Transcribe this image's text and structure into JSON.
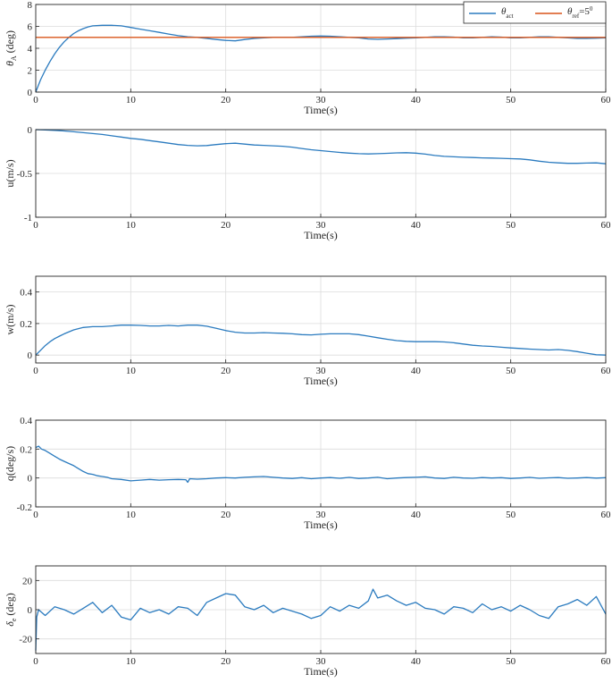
{
  "colors": {
    "series_blue": "#2b7bbf",
    "reference_red": "#d9541a",
    "grid": "#dcdcdc",
    "axes": "#262626"
  },
  "chart_data": [
    {
      "type": "line",
      "xlabel": "Time(s)",
      "ylabel": "θ_A (deg)",
      "xlim": [
        0,
        60
      ],
      "ylim": [
        0,
        8
      ],
      "xticks": [
        0,
        10,
        20,
        30,
        40,
        50,
        60
      ],
      "yticks": [
        0,
        2,
        4,
        6,
        8
      ],
      "grid": true,
      "legend": "top-right",
      "series": [
        {
          "name": "θ_act",
          "color": "#2b7bbf",
          "x": [
            0,
            0.5,
            1,
            1.5,
            2,
            2.5,
            3,
            3.5,
            4,
            4.5,
            5,
            5.5,
            6,
            7,
            8,
            9,
            10,
            11,
            12,
            13,
            14,
            15,
            16,
            17,
            18,
            19,
            20,
            21,
            22,
            23,
            24,
            25,
            26,
            27,
            28,
            29,
            30,
            31,
            32,
            33,
            34,
            35,
            36,
            37,
            38,
            39,
            40,
            41,
            42,
            43,
            44,
            45,
            46,
            47,
            48,
            49,
            50,
            51,
            52,
            53,
            54,
            55,
            56,
            57,
            58,
            59,
            60
          ],
          "y": [
            0,
            1.1,
            2.0,
            2.8,
            3.5,
            4.1,
            4.6,
            5.0,
            5.35,
            5.6,
            5.8,
            5.95,
            6.05,
            6.1,
            6.1,
            6.05,
            5.9,
            5.75,
            5.6,
            5.45,
            5.3,
            5.15,
            5.05,
            5.0,
            4.9,
            4.8,
            4.72,
            4.68,
            4.8,
            4.9,
            4.95,
            5.0,
            5.0,
            5.0,
            5.05,
            5.1,
            5.12,
            5.1,
            5.05,
            5.0,
            4.95,
            4.85,
            4.82,
            4.85,
            4.88,
            4.92,
            4.95,
            5.0,
            5.05,
            5.05,
            5.02,
            4.95,
            4.95,
            5.0,
            5.05,
            5.02,
            4.95,
            4.95,
            5.0,
            5.05,
            5.05,
            5.0,
            4.95,
            4.9,
            4.9,
            4.92,
            4.95
          ]
        },
        {
          "name": "θ_ref=5⁰",
          "color": "#d9541a",
          "x": [
            0,
            60
          ],
          "y": [
            5,
            5
          ]
        }
      ],
      "legend_entries": [
        {
          "base": "θ",
          "sub": "act",
          "sup": "",
          "tail": ""
        },
        {
          "base": "θ",
          "sub": "ref",
          "sup": "0",
          "tail": "=5"
        }
      ]
    },
    {
      "type": "line",
      "xlabel": "Time(s)",
      "ylabel": "u(m/s)",
      "xlim": [
        0,
        60
      ],
      "ylim": [
        -1,
        0
      ],
      "xticks": [
        0,
        10,
        20,
        30,
        40,
        50,
        60
      ],
      "yticks": [
        -1,
        -0.5,
        0
      ],
      "ytick_labels": [
        "-1",
        "-0.5",
        "0"
      ],
      "grid": true,
      "series": [
        {
          "color": "#2b7bbf",
          "x": [
            0,
            1,
            2,
            3,
            4,
            5,
            6,
            7,
            8,
            9,
            10,
            11,
            12,
            13,
            14,
            15,
            16,
            17,
            18,
            19,
            20,
            21,
            22,
            23,
            24,
            25,
            26,
            27,
            28,
            29,
            30,
            31,
            32,
            33,
            34,
            35,
            36,
            37,
            38,
            39,
            40,
            41,
            42,
            43,
            44,
            45,
            46,
            47,
            48,
            49,
            50,
            51,
            52,
            53,
            54,
            55,
            56,
            57,
            58,
            59,
            60
          ],
          "y": [
            0,
            -0.003,
            -0.008,
            -0.015,
            -0.025,
            -0.035,
            -0.045,
            -0.055,
            -0.07,
            -0.085,
            -0.1,
            -0.11,
            -0.125,
            -0.14,
            -0.155,
            -0.17,
            -0.18,
            -0.185,
            -0.182,
            -0.17,
            -0.16,
            -0.155,
            -0.165,
            -0.175,
            -0.18,
            -0.185,
            -0.19,
            -0.2,
            -0.215,
            -0.23,
            -0.24,
            -0.25,
            -0.26,
            -0.268,
            -0.275,
            -0.278,
            -0.275,
            -0.27,
            -0.265,
            -0.263,
            -0.268,
            -0.28,
            -0.295,
            -0.305,
            -0.31,
            -0.315,
            -0.318,
            -0.322,
            -0.325,
            -0.328,
            -0.332,
            -0.335,
            -0.345,
            -0.36,
            -0.372,
            -0.38,
            -0.385,
            -0.385,
            -0.382,
            -0.38,
            -0.39
          ]
        }
      ]
    },
    {
      "type": "line",
      "xlabel": "Time(s)",
      "ylabel": "w(m/s)",
      "xlim": [
        0,
        60
      ],
      "ylim": [
        -0.05,
        0.5
      ],
      "xticks": [
        0,
        10,
        20,
        30,
        40,
        50,
        60
      ],
      "yticks": [
        0,
        0.2,
        0.4
      ],
      "ytick_labels": [
        "0",
        "0.2",
        "0.4"
      ],
      "grid": true,
      "series": [
        {
          "color": "#2b7bbf",
          "x": [
            0,
            0.5,
            1,
            1.5,
            2,
            2.5,
            3,
            4,
            5,
            6,
            7,
            8,
            9,
            10,
            11,
            12,
            13,
            14,
            15,
            16,
            17,
            18,
            19,
            20,
            21,
            22,
            23,
            24,
            25,
            26,
            27,
            28,
            29,
            30,
            31,
            32,
            33,
            34,
            35,
            36,
            37,
            38,
            39,
            40,
            41,
            42,
            43,
            44,
            45,
            46,
            47,
            48,
            49,
            50,
            51,
            52,
            53,
            54,
            55,
            56,
            57,
            58,
            59,
            60
          ],
          "y": [
            0,
            0.03,
            0.06,
            0.085,
            0.105,
            0.12,
            0.135,
            0.16,
            0.175,
            0.18,
            0.18,
            0.185,
            0.19,
            0.19,
            0.188,
            0.185,
            0.185,
            0.188,
            0.185,
            0.19,
            0.19,
            0.183,
            0.17,
            0.155,
            0.145,
            0.14,
            0.14,
            0.142,
            0.14,
            0.138,
            0.135,
            0.13,
            0.128,
            0.132,
            0.135,
            0.135,
            0.135,
            0.13,
            0.12,
            0.11,
            0.1,
            0.092,
            0.087,
            0.085,
            0.085,
            0.085,
            0.083,
            0.078,
            0.07,
            0.062,
            0.058,
            0.055,
            0.05,
            0.045,
            0.042,
            0.038,
            0.035,
            0.032,
            0.035,
            0.03,
            0.022,
            0.012,
            0.002,
            0.0
          ]
        }
      ]
    },
    {
      "type": "line",
      "xlabel": "Time(s)",
      "ylabel": "q(deg/s)",
      "xlim": [
        0,
        60
      ],
      "ylim": [
        -0.2,
        0.4
      ],
      "xticks": [
        0,
        10,
        20,
        30,
        40,
        50,
        60
      ],
      "yticks": [
        -0.2,
        0,
        0.2,
        0.4
      ],
      "ytick_labels": [
        "-0.2",
        "0",
        "0.2",
        "0.4"
      ],
      "grid": true,
      "series": [
        {
          "color": "#2b7bbf",
          "x": [
            0,
            0.3,
            0.6,
            1,
            1.5,
            2,
            2.5,
            3,
            3.5,
            4,
            4.5,
            5,
            5.5,
            6,
            6.5,
            7,
            7.5,
            8,
            9,
            10,
            11,
            12,
            13,
            14,
            15,
            15.8,
            16,
            16.2,
            17,
            18,
            19,
            20,
            21,
            22,
            23,
            24,
            25,
            26,
            27,
            28,
            29,
            30,
            31,
            32,
            33,
            34,
            35,
            36,
            37,
            38,
            39,
            40,
            41,
            42,
            43,
            44,
            45,
            46,
            47,
            48,
            49,
            50,
            51,
            52,
            53,
            54,
            55,
            56,
            57,
            58,
            59,
            60
          ],
          "y": [
            0.21,
            0.22,
            0.2,
            0.19,
            0.17,
            0.15,
            0.13,
            0.115,
            0.1,
            0.085,
            0.065,
            0.045,
            0.03,
            0.025,
            0.015,
            0.01,
            0.005,
            -0.005,
            -0.01,
            -0.02,
            -0.015,
            -0.01,
            -0.015,
            -0.012,
            -0.01,
            -0.012,
            -0.03,
            -0.005,
            -0.008,
            -0.005,
            0.0,
            0.002,
            0.0,
            0.005,
            0.008,
            0.01,
            0.005,
            0.0,
            -0.003,
            0.002,
            -0.005,
            0.0,
            0.003,
            -0.002,
            0.004,
            -0.003,
            0.0,
            0.005,
            -0.005,
            0.0,
            0.003,
            0.005,
            0.008,
            0.0,
            -0.003,
            0.005,
            0.0,
            -0.002,
            0.003,
            0.0,
            0.002,
            -0.003,
            0.0,
            0.004,
            -0.002,
            0.001,
            0.003,
            -0.002,
            0.0,
            0.003,
            -0.001,
            0.002
          ]
        }
      ]
    },
    {
      "type": "line",
      "xlabel": "Time(s)",
      "ylabel": "δ_e (deg)",
      "xlim": [
        0,
        60
      ],
      "ylim": [
        -30,
        30
      ],
      "xticks": [
        0,
        10,
        20,
        30,
        40,
        50,
        60
      ],
      "yticks": [
        -20,
        0,
        20
      ],
      "ytick_labels": [
        "-20",
        "0",
        "20"
      ],
      "grid": true,
      "series": [
        {
          "color": "#2b7bbf",
          "x": [
            0,
            0.1,
            0.3,
            1,
            2,
            3,
            4,
            5,
            6,
            7,
            8,
            9,
            10,
            11,
            12,
            13,
            14,
            15,
            16,
            17,
            18,
            19,
            20,
            21,
            22,
            23,
            24,
            25,
            26,
            27,
            28,
            29,
            30,
            31,
            32,
            33,
            34,
            35,
            35.5,
            36,
            37,
            38,
            39,
            40,
            41,
            42,
            43,
            44,
            45,
            46,
            47,
            48,
            49,
            50,
            51,
            52,
            53,
            54,
            55,
            56,
            57,
            58,
            59,
            60
          ],
          "y": [
            -28,
            -5,
            0,
            -4,
            2,
            0,
            -3,
            1,
            5,
            -2,
            3,
            -5,
            -7,
            1,
            -2,
            0,
            -3,
            2,
            1,
            -4,
            5,
            8,
            11,
            10,
            2,
            0,
            3,
            -2,
            1,
            -1,
            -3,
            -6,
            -4,
            2,
            -1,
            3,
            1,
            6,
            14,
            8,
            10,
            6,
            3,
            5,
            1,
            0,
            -3,
            2,
            1,
            -2,
            4,
            0,
            2,
            -1,
            3,
            0,
            -4,
            -6,
            2,
            4,
            7,
            3,
            9,
            -3
          ]
        }
      ]
    }
  ]
}
